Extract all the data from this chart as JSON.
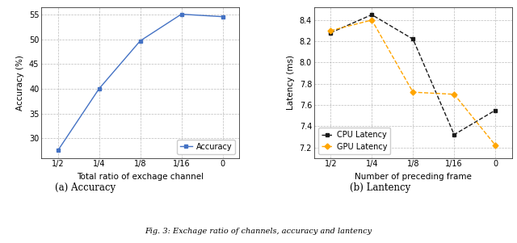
{
  "acc_x_labels": [
    "1/2",
    "1/4",
    "1/8",
    "1/16",
    "0"
  ],
  "acc_y_values": [
    27.5,
    40.0,
    49.7,
    55.1,
    54.6
  ],
  "acc_ylabel": "Accuracy (%)",
  "acc_xlabel": "Total ratio of exchage channel",
  "acc_yticks": [
    30,
    35,
    40,
    45,
    50,
    55
  ],
  "acc_ylim": [
    26.0,
    56.5
  ],
  "acc_line_color": "#4472c4",
  "acc_marker": "s",
  "acc_legend_label": "Accuracy",
  "acc_title": "(a) Accuracy",
  "lat_x_labels": [
    "1/2",
    "1/4",
    "1/8",
    "1/16",
    "0"
  ],
  "cpu_y_values": [
    8.28,
    8.45,
    8.22,
    7.32,
    7.55
  ],
  "gpu_y_values": [
    8.3,
    8.4,
    7.72,
    7.7,
    7.22
  ],
  "lat_ylabel": "Latency (ms)",
  "lat_xlabel": "Number of preceding frame",
  "lat_yticks": [
    7.2,
    7.4,
    7.6,
    7.8,
    8.0,
    8.2,
    8.4
  ],
  "lat_ylim": [
    7.1,
    8.52
  ],
  "cpu_color": "#1a1a1a",
  "gpu_color": "#FFA500",
  "cpu_legend_label": "CPU Latency",
  "gpu_legend_label": "GPU Latency",
  "lat_title": "(b) Lantency",
  "figure_caption": "Fig. 3: Exchage ratio of channels, accuracy and lantency",
  "bg_color": "#ffffff"
}
